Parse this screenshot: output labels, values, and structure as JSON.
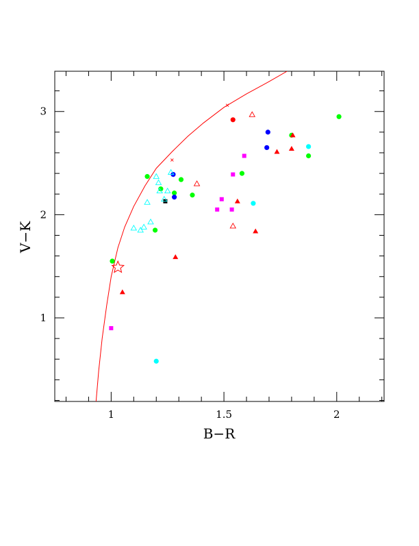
{
  "chart_data": {
    "type": "scatter",
    "xlabel": "B−R",
    "ylabel": "V−K",
    "xlim": [
      0.75,
      2.21
    ],
    "ylim": [
      0.19,
      3.39
    ],
    "xticks": [
      {
        "value": 1,
        "label": "1"
      },
      {
        "value": 1.5,
        "label": "1.5"
      },
      {
        "value": 2,
        "label": "2"
      }
    ],
    "yticks": [
      {
        "value": 1,
        "label": "1"
      },
      {
        "value": 2,
        "label": "2"
      },
      {
        "value": 3,
        "label": "3"
      }
    ],
    "xminor_step": 0.1,
    "yminor_step": 0.2,
    "grid": false,
    "curve": {
      "color": "#ff0000",
      "points": [
        [
          0.933,
          0.19
        ],
        [
          0.945,
          0.49
        ],
        [
          0.96,
          0.8
        ],
        [
          0.98,
          1.12
        ],
        [
          1.0,
          1.4
        ],
        [
          1.03,
          1.68
        ],
        [
          1.06,
          1.88
        ],
        [
          1.1,
          2.08
        ],
        [
          1.15,
          2.28
        ],
        [
          1.2,
          2.45
        ],
        [
          1.27,
          2.61
        ],
        [
          1.34,
          2.76
        ],
        [
          1.41,
          2.89
        ],
        [
          1.5,
          3.04
        ],
        [
          1.6,
          3.17
        ],
        [
          1.7,
          3.29
        ],
        [
          1.78,
          3.39
        ]
      ],
      "tick_marks": [
        [
          1.27,
          2.53
        ],
        [
          1.515,
          3.06
        ]
      ]
    },
    "series": [
      {
        "marker": "filled-circle",
        "color": "#00ff00",
        "points": [
          [
            1.005,
            1.55
          ],
          [
            1.16,
            2.37
          ],
          [
            1.195,
            1.85
          ],
          [
            1.22,
            2.25
          ],
          [
            1.28,
            2.21
          ],
          [
            1.31,
            2.34
          ],
          [
            1.36,
            2.19
          ],
          [
            1.58,
            2.4
          ],
          [
            1.8,
            2.77
          ],
          [
            1.875,
            2.57
          ],
          [
            2.01,
            2.95
          ]
        ]
      },
      {
        "marker": "filled-circle",
        "color": "#00ffff",
        "points": [
          [
            1.2,
            0.58
          ],
          [
            1.63,
            2.11
          ],
          [
            1.875,
            2.66
          ]
        ]
      },
      {
        "marker": "filled-circle",
        "color": "#0000ff",
        "points": [
          [
            1.275,
            2.39
          ],
          [
            1.28,
            2.17
          ],
          [
            1.69,
            2.65
          ],
          [
            1.695,
            2.8
          ]
        ]
      },
      {
        "marker": "filled-circle",
        "color": "#ff0000",
        "points": [
          [
            1.54,
            2.92
          ]
        ]
      },
      {
        "marker": "filled-square",
        "color": "#ff00ff",
        "points": [
          [
            1.0,
            0.9
          ],
          [
            1.47,
            2.05
          ],
          [
            1.49,
            2.15
          ],
          [
            1.535,
            2.05
          ],
          [
            1.54,
            2.39
          ],
          [
            1.59,
            2.57
          ]
        ]
      },
      {
        "marker": "filled-square",
        "color": "#000000",
        "points": [
          [
            1.24,
            2.13
          ]
        ]
      },
      {
        "marker": "filled-triangle",
        "color": "#ff0000",
        "points": [
          [
            1.05,
            1.25
          ],
          [
            1.285,
            1.59
          ],
          [
            1.56,
            2.13
          ],
          [
            1.64,
            1.84
          ],
          [
            1.735,
            2.61
          ],
          [
            1.8,
            2.64
          ],
          [
            1.805,
            2.77
          ]
        ]
      },
      {
        "marker": "open-triangle",
        "color": "#00ffff",
        "points": [
          [
            1.1,
            1.87
          ],
          [
            1.13,
            1.85
          ],
          [
            1.145,
            1.88
          ],
          [
            1.16,
            2.12
          ],
          [
            1.175,
            1.93
          ],
          [
            1.2,
            2.37
          ],
          [
            1.21,
            2.31
          ],
          [
            1.215,
            2.23
          ],
          [
            1.235,
            2.15
          ],
          [
            1.25,
            2.23
          ],
          [
            1.265,
            2.41
          ]
        ]
      },
      {
        "marker": "open-triangle",
        "color": "#ff0000",
        "points": [
          [
            1.38,
            2.3
          ],
          [
            1.54,
            1.89
          ],
          [
            1.625,
            2.97
          ]
        ]
      },
      {
        "marker": "open-star",
        "color": "#ff0000",
        "points": [
          [
            1.03,
            1.49
          ]
        ]
      }
    ]
  }
}
